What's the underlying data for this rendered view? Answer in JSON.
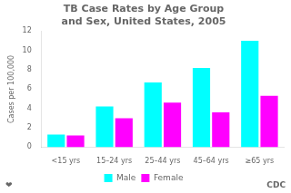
{
  "chart_data": {
    "type": "bar",
    "title": "TB Case Rates by Age Group\nand Sex, United States, 2005",
    "y_label": "Cases per 100,000",
    "categories": [
      "<15 yrs",
      "15–24 yrs",
      "25–44 yrs",
      "45–64 yrs",
      "≥65 yrs"
    ],
    "series": [
      {
        "name": "Male",
        "color": "#00FFFF",
        "values": [
          1.3,
          4.2,
          6.7,
          8.2,
          11.0
        ]
      },
      {
        "name": "Female",
        "color": "#FF00FF",
        "values": [
          1.2,
          3.0,
          4.6,
          3.6,
          5.3
        ]
      }
    ],
    "ylim": [
      0,
      12
    ],
    "yticks": [
      0,
      2,
      4,
      6,
      8,
      10,
      12
    ],
    "grid": false,
    "legend": "bottom",
    "annotations": [
      "❤",
      "CDC"
    ]
  }
}
